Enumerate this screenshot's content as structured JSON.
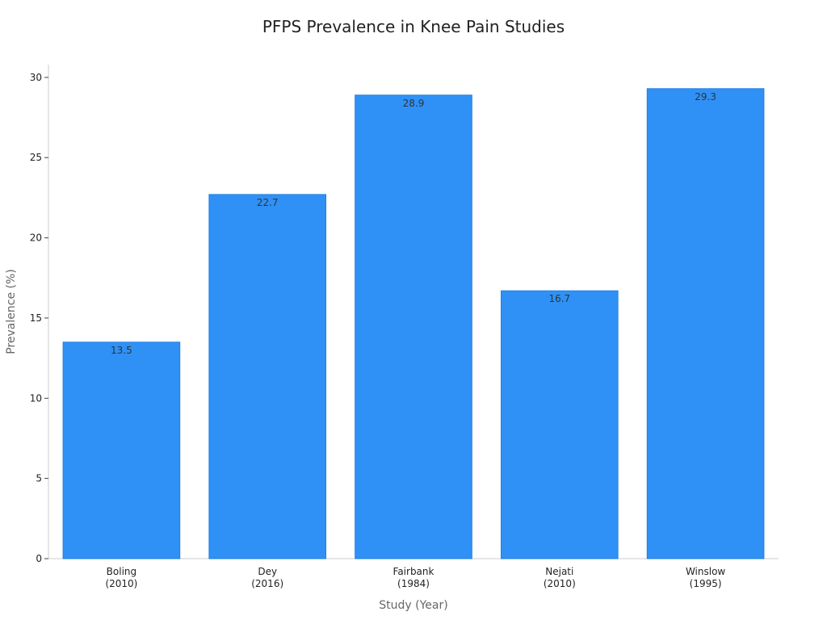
{
  "chart_data": {
    "type": "bar",
    "title": "PFPS Prevalence in Knee Pain Studies",
    "xlabel": "Study (Year)",
    "ylabel": "Prevalence (%)",
    "categories": [
      [
        "Boling",
        "(2010)"
      ],
      [
        "Dey",
        "(2016)"
      ],
      [
        "Fairbank",
        "(1984)"
      ],
      [
        "Nejati",
        "(2010)"
      ],
      [
        "Winslow",
        "(1995)"
      ]
    ],
    "values": [
      13.5,
      22.7,
      28.9,
      16.7,
      29.3
    ],
    "data_labels": [
      "13.5",
      "22.7",
      "28.9",
      "16.7",
      "29.3"
    ],
    "yticks": [
      0,
      5,
      10,
      15,
      20,
      25,
      30
    ],
    "ylim": [
      0,
      30.8
    ],
    "grid": false,
    "bar_color": "#2f91f6",
    "bar_edge_color": "#1f7fe0"
  }
}
